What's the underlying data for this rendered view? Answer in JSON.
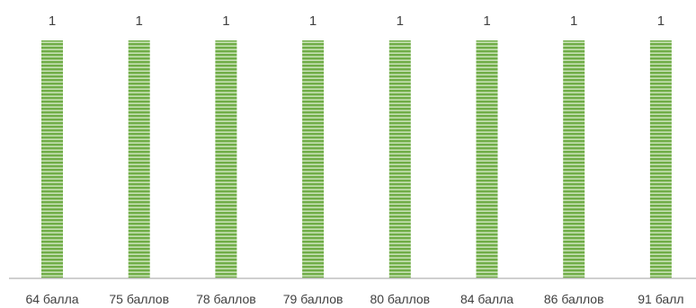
{
  "chart_data": {
    "type": "bar",
    "categories": [
      "64 балла",
      "75 баллов",
      "78 баллов",
      "79 баллов",
      "80 баллов",
      "84 балла",
      "86 баллов",
      "91 балл"
    ],
    "values": [
      1,
      1,
      1,
      1,
      1,
      1,
      1,
      1
    ],
    "data_labels": [
      "1",
      "1",
      "1",
      "1",
      "1",
      "1",
      "1",
      "1"
    ],
    "ylim": [
      0,
      1
    ],
    "grid": false,
    "legend": "none",
    "colors": {
      "bar_fill": "#70ad47",
      "bar_stripe": "#c6e0b4",
      "axis": "#bfbfbf",
      "text": "#404040"
    }
  }
}
